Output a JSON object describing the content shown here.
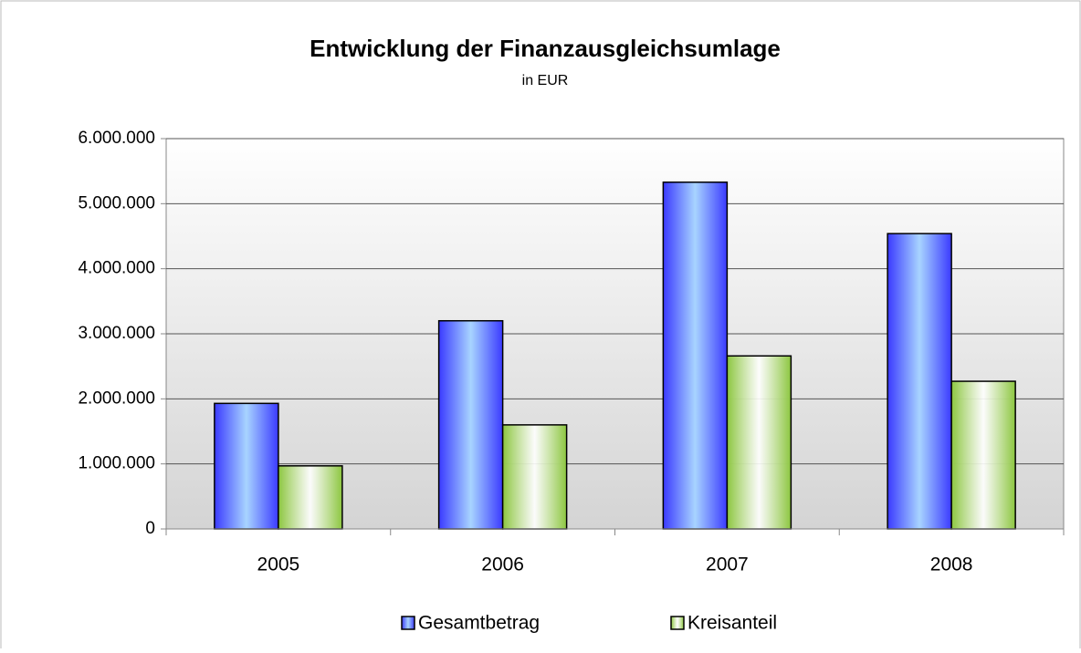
{
  "chart_data": {
    "type": "bar",
    "title": "Entwicklung der Finanzausgleichsumlage",
    "subtitle": "in EUR",
    "categories": [
      "2005",
      "2006",
      "2007",
      "2008"
    ],
    "series": [
      {
        "name": "Gesamtbetrag",
        "color": "#3a3aff",
        "values": [
          1930000,
          3200000,
          5330000,
          4540000
        ]
      },
      {
        "name": "Kreisanteil",
        "color": "#8cc63f",
        "values": [
          970000,
          1600000,
          2660000,
          2270000
        ]
      }
    ],
    "ylim": [
      0,
      6000000
    ],
    "yticks": [
      0,
      {
        "value": 1000000,
        "label": "1.000.000"
      },
      {
        "value": 2000000,
        "label": "2.000.000"
      },
      {
        "value": 3000000,
        "label": "3.000.000"
      },
      {
        "value": 4000000,
        "label": "4.000.000"
      },
      {
        "value": 5000000,
        "label": "5.000.000"
      },
      {
        "value": 6000000,
        "label": "6.000.000"
      }
    ],
    "grid": true,
    "legend": "bottom"
  }
}
